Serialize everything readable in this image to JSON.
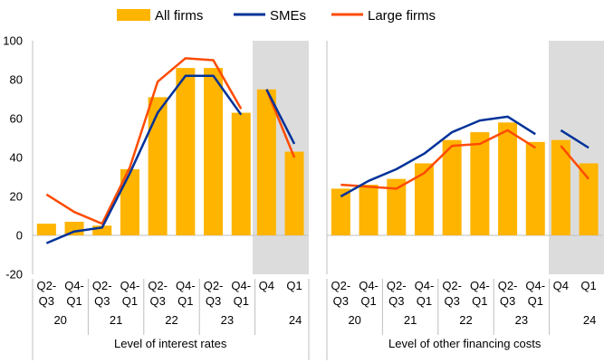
{
  "chart_data": {
    "type": "bar",
    "colors": {
      "bar": "#FFB400",
      "smes": "#003299",
      "large": "#FF4B00",
      "shade": "#dcdcdc"
    },
    "legend": [
      {
        "name": "All firms",
        "kind": "bar"
      },
      {
        "name": "SMEs",
        "kind": "line"
      },
      {
        "name": "Large firms",
        "kind": "line"
      }
    ],
    "legend_position": "top",
    "ylim": [
      -20,
      100
    ],
    "yticks": [
      "-20",
      "0",
      "20",
      "40",
      "60",
      "80",
      "100"
    ],
    "panels": [
      {
        "title": "Level of interest rates",
        "groups": [
          {
            "shaded": false,
            "categories": [
              {
                "top": "Q2-",
                "bottom": "Q3"
              },
              {
                "top": "Q4-",
                "bottom": "Q1"
              },
              {
                "top": "Q2-",
                "bottom": "Q3"
              },
              {
                "top": "Q4-",
                "bottom": "Q1"
              },
              {
                "top": "Q2-",
                "bottom": "Q3"
              },
              {
                "top": "Q4-",
                "bottom": "Q1"
              },
              {
                "top": "Q2-",
                "bottom": "Q3"
              },
              {
                "top": "Q4-",
                "bottom": "Q1"
              }
            ],
            "years": [
              {
                "label": "20",
                "span": [
                  0,
                  1
                ]
              },
              {
                "label": "21",
                "span": [
                  2,
                  3
                ]
              },
              {
                "label": "22",
                "span": [
                  4,
                  5
                ]
              },
              {
                "label": "23",
                "span": [
                  6,
                  7
                ]
              }
            ],
            "all_firms": [
              6,
              7,
              5,
              34,
              71,
              86,
              86,
              63
            ],
            "smes": [
              -4,
              2,
              4,
              32,
              63,
              82,
              82,
              62
            ],
            "large_firms": [
              21,
              12,
              6,
              35,
              79,
              91,
              90,
              65
            ]
          },
          {
            "shaded": true,
            "categories": [
              {
                "top": "Q4",
                "bottom": ""
              },
              {
                "top": "Q1",
                "bottom": ""
              }
            ],
            "years": [
              {
                "label": "24",
                "span": [
                  1,
                  1
                ]
              }
            ],
            "all_firms": [
              75,
              43
            ],
            "smes": [
              75,
              47
            ],
            "large_firms": [
              75,
              40
            ]
          }
        ]
      },
      {
        "title": "Level of other financing costs",
        "groups": [
          {
            "shaded": false,
            "categories": [
              {
                "top": "Q2-",
                "bottom": "Q3"
              },
              {
                "top": "Q4-",
                "bottom": "Q1"
              },
              {
                "top": "Q2-",
                "bottom": "Q3"
              },
              {
                "top": "Q4-",
                "bottom": "Q1"
              },
              {
                "top": "Q2-",
                "bottom": "Q3"
              },
              {
                "top": "Q4-",
                "bottom": "Q1"
              },
              {
                "top": "Q2-",
                "bottom": "Q3"
              },
              {
                "top": "Q4-",
                "bottom": "Q1"
              }
            ],
            "years": [
              {
                "label": "20",
                "span": [
                  0,
                  1
                ]
              },
              {
                "label": "21",
                "span": [
                  2,
                  3
                ]
              },
              {
                "label": "22",
                "span": [
                  4,
                  5
                ]
              },
              {
                "label": "23",
                "span": [
                  6,
                  7
                ]
              }
            ],
            "all_firms": [
              24,
              26,
              29,
              37,
              49,
              53,
              58,
              48
            ],
            "smes": [
              20,
              28,
              34,
              42,
              53,
              59,
              61,
              52
            ],
            "large_firms": [
              26,
              25,
              24,
              32,
              46,
              47,
              54,
              45
            ]
          },
          {
            "shaded": true,
            "categories": [
              {
                "top": "Q4",
                "bottom": ""
              },
              {
                "top": "Q1",
                "bottom": ""
              }
            ],
            "years": [
              {
                "label": "24",
                "span": [
                  1,
                  1
                ]
              }
            ],
            "all_firms": [
              49,
              37
            ],
            "smes": [
              54,
              45
            ],
            "large_firms": [
              46,
              29
            ]
          }
        ]
      }
    ]
  }
}
